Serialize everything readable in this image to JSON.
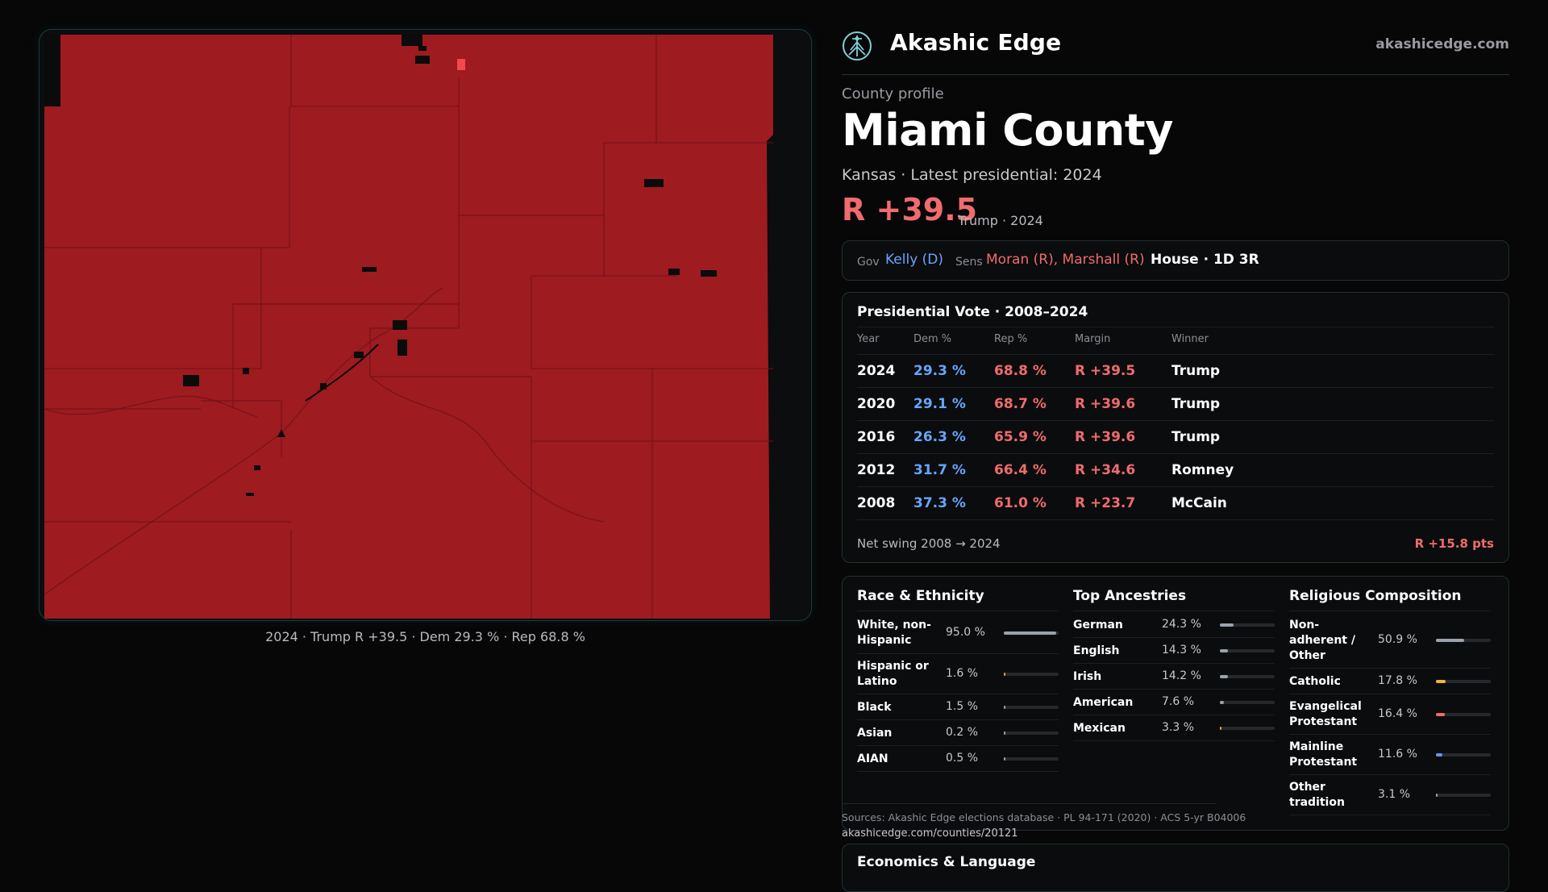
{
  "map": {
    "caption": "2024 · Trump R +39.5 · Dem 29.3 % · Rep 68.8 %",
    "fill_color": "#9e1b20",
    "line_color": "#6e1216"
  },
  "brand": {
    "name": "Akashic Edge",
    "url": "akashicedge.com",
    "logo_icon": "tree-of-life-icon"
  },
  "profile": {
    "kicker": "County profile",
    "title": "Miami County",
    "subline": "Kansas · Latest presidential: 2024",
    "margin": "R +39.5",
    "margin_note": "Trump · 2024"
  },
  "officials": {
    "gov_label": "Gov",
    "gov_value": "Kelly (D)",
    "sens_label": "Sens",
    "sens_value": "Moran (R), Marshall (R)",
    "house_value": "House · 1D 3R"
  },
  "vote": {
    "title": "Presidential Vote · 2008–2024",
    "headers": [
      "Year",
      "Dem %",
      "Rep %",
      "Margin",
      "Winner"
    ],
    "rows": [
      {
        "year": "2024",
        "dem": "29.3 %",
        "rep": "68.8 %",
        "margin": "R +39.5",
        "winner": "Trump"
      },
      {
        "year": "2020",
        "dem": "29.1 %",
        "rep": "68.7 %",
        "margin": "R +39.6",
        "winner": "Trump"
      },
      {
        "year": "2016",
        "dem": "26.3 %",
        "rep": "65.9 %",
        "margin": "R +39.6",
        "winner": "Trump"
      },
      {
        "year": "2012",
        "dem": "31.7 %",
        "rep": "66.4 %",
        "margin": "R +34.6",
        "winner": "Romney"
      },
      {
        "year": "2008",
        "dem": "37.3 %",
        "rep": "61.0 %",
        "margin": "R +23.7",
        "winner": "McCain"
      }
    ],
    "swing_label": "Net swing 2008 → 2024",
    "swing_value": "R +15.8 pts"
  },
  "demographics": {
    "race": {
      "title": "Race & Ethnicity",
      "items": [
        {
          "label": "White, non-Hispanic",
          "value": "95.0 %",
          "pct": 95.0,
          "color": "#9aa3ad"
        },
        {
          "label": "Hispanic or Latino",
          "value": "1.6 %",
          "pct": 1.6,
          "color": "#e0a23a"
        },
        {
          "label": "Black",
          "value": "1.5 %",
          "pct": 1.5,
          "color": "#9aa3ad"
        },
        {
          "label": "Asian",
          "value": "0.2 %",
          "pct": 0.2,
          "color": "#9aa3ad"
        },
        {
          "label": "AIAN",
          "value": "0.5 %",
          "pct": 0.5,
          "color": "#9aa3ad"
        }
      ]
    },
    "ancestry": {
      "title": "Top Ancestries",
      "items": [
        {
          "label": "German",
          "value": "24.3 %",
          "pct": 24.3,
          "color": "#9aa3ad"
        },
        {
          "label": "English",
          "value": "14.3 %",
          "pct": 14.3,
          "color": "#9aa3ad"
        },
        {
          "label": "Irish",
          "value": "14.2 %",
          "pct": 14.2,
          "color": "#9aa3ad"
        },
        {
          "label": "American",
          "value": "7.6 %",
          "pct": 7.6,
          "color": "#9aa3ad"
        },
        {
          "label": "Mexican",
          "value": "3.3 %",
          "pct": 3.3,
          "color": "#e0a23a"
        }
      ]
    },
    "religion": {
      "title": "Religious Composition",
      "items": [
        {
          "label": "Non-adherent / Other",
          "value": "50.9 %",
          "pct": 50.9,
          "color": "#9aa3ad"
        },
        {
          "label": "Catholic",
          "value": "17.8 %",
          "pct": 17.8,
          "color": "#e6b93a"
        },
        {
          "label": "Evangelical Protestant",
          "value": "16.4 %",
          "pct": 16.4,
          "color": "#f06b6e"
        },
        {
          "label": "Mainline Protestant",
          "value": "11.6 %",
          "pct": 11.6,
          "color": "#5a9bff"
        },
        {
          "label": "Other tradition",
          "value": "3.1 %",
          "pct": 3.1,
          "color": "#9aa3ad"
        }
      ]
    }
  },
  "sources": {
    "text": "Sources: Akashic Edge elections database · PL 94-171 (2020) · ACS 5-yr B04006",
    "url": "akashicedge.com/counties/20121"
  },
  "econ": {
    "title": "Economics & Language"
  }
}
